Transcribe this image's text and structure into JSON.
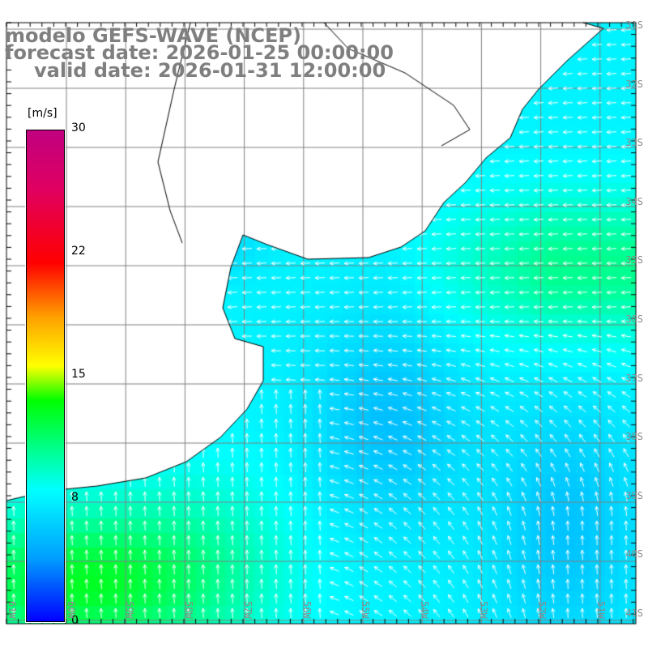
{
  "title": {
    "model": "modelo GEFS-WAVE (NCEP)",
    "forecast": "forecast date: 2026-01-25 00:00:00",
    "valid": "valid date: 2026-01-31 12:00:00"
  },
  "colorbar": {
    "unit": "[m/s]",
    "ticks": [
      "30",
      "22",
      "15",
      "8",
      "0"
    ],
    "range": [
      0,
      30
    ]
  },
  "latitudes": [
    "31S",
    "32S",
    "33S",
    "34S",
    "35S",
    "36S",
    "37S",
    "38S",
    "39S",
    "40S",
    "41S"
  ],
  "longitudes": [
    "61W",
    "60W",
    "59W",
    "58W",
    "57W",
    "56W",
    "55W",
    "54W",
    "53W",
    "52W",
    "51W"
  ],
  "colors": {
    "land": "#ffffff",
    "grid": "#808080",
    "coast": "#000000",
    "arrows": "#ffffff",
    "title": "#7f7f7f"
  }
}
